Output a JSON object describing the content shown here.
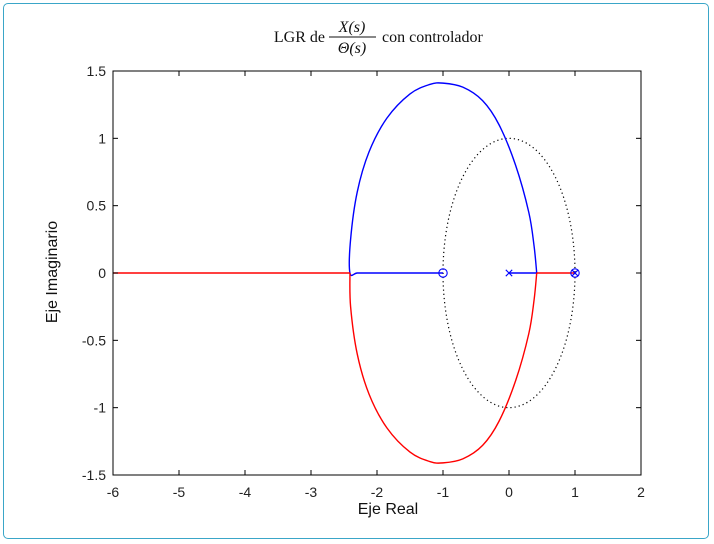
{
  "chart_data": {
    "type": "line",
    "title": {
      "prefix": "LGR de",
      "numerator": "X(s)",
      "denominator": "Θ(s)",
      "suffix": "con controlador"
    },
    "xlabel": "Eje Real",
    "ylabel": "Eje Imaginario",
    "xlim": [
      -6,
      2
    ],
    "ylim": [
      -1.5,
      1.5
    ],
    "xticks": [
      -6,
      -5,
      -4,
      -3,
      -2,
      -1,
      0,
      1,
      2
    ],
    "yticks": [
      -1.5,
      -1,
      -0.5,
      0,
      0.5,
      1,
      1.5
    ],
    "xtick_labels": [
      "-6",
      "-5",
      "-4",
      "-3",
      "-2",
      "-1",
      "0",
      "1",
      "2"
    ],
    "ytick_labels": [
      "-1.5",
      "-1",
      "-0.5",
      "0",
      "0.5",
      "1",
      "1.5"
    ],
    "grid": false,
    "colors": {
      "upper_branch": "#0000ff",
      "lower_branch": "#ff0000",
      "unit_circle": "#000000",
      "frame": "#3aa6c8"
    },
    "series": [
      {
        "style": "solid-blue",
        "color": "#0000ff",
        "x": [
          -1,
          -1.4,
          -1.8,
          -2.1,
          -2.3,
          -2.41,
          -2.4,
          -2.3,
          -2.12,
          -1.85,
          -1.5,
          -1.2,
          -1.0,
          -0.7,
          -0.4,
          -0.15,
          0.1,
          0.3,
          0.38,
          0.42
        ],
        "y": [
          0,
          0,
          0,
          0,
          0,
          0,
          0.25,
          0.6,
          0.9,
          1.15,
          1.33,
          1.4,
          1.41,
          1.38,
          1.28,
          1.1,
          0.8,
          0.45,
          0.2,
          0
        ]
      },
      {
        "style": "solid-blue",
        "color": "#0000ff",
        "x": [
          0,
          0.42
        ],
        "y": [
          0,
          0
        ]
      },
      {
        "style": "solid-red",
        "color": "#ff0000",
        "x": [
          -2.41,
          -2.4,
          -2.3,
          -2.12,
          -1.85,
          -1.5,
          -1.2,
          -1.0,
          -0.7,
          -0.4,
          -0.15,
          0.1,
          0.3,
          0.38,
          0.42
        ],
        "y": [
          0,
          -0.25,
          -0.6,
          -0.9,
          -1.15,
          -1.33,
          -1.4,
          -1.41,
          -1.38,
          -1.28,
          -1.1,
          -0.8,
          -0.45,
          -0.2,
          0
        ]
      },
      {
        "style": "solid-red",
        "color": "#ff0000",
        "x": [
          -6,
          -2.41
        ],
        "y": [
          0,
          0
        ]
      },
      {
        "style": "solid-red",
        "color": "#ff0000",
        "x": [
          0.42,
          1
        ],
        "y": [
          0,
          0
        ]
      },
      {
        "style": "dotted-black",
        "color": "#000000",
        "circle": {
          "cx": 0,
          "cy": 0,
          "r": 1
        }
      }
    ],
    "markers": [
      {
        "kind": "pole-x",
        "x": 0,
        "y": 0,
        "color": "#0000ff"
      },
      {
        "kind": "pole-x",
        "x": 1,
        "y": 0,
        "color": "#0000ff"
      },
      {
        "kind": "zero-o",
        "x": -1,
        "y": 0,
        "color": "#0000ff"
      },
      {
        "kind": "zero-o",
        "x": 1,
        "y": 0,
        "color": "#0000ff"
      }
    ]
  }
}
